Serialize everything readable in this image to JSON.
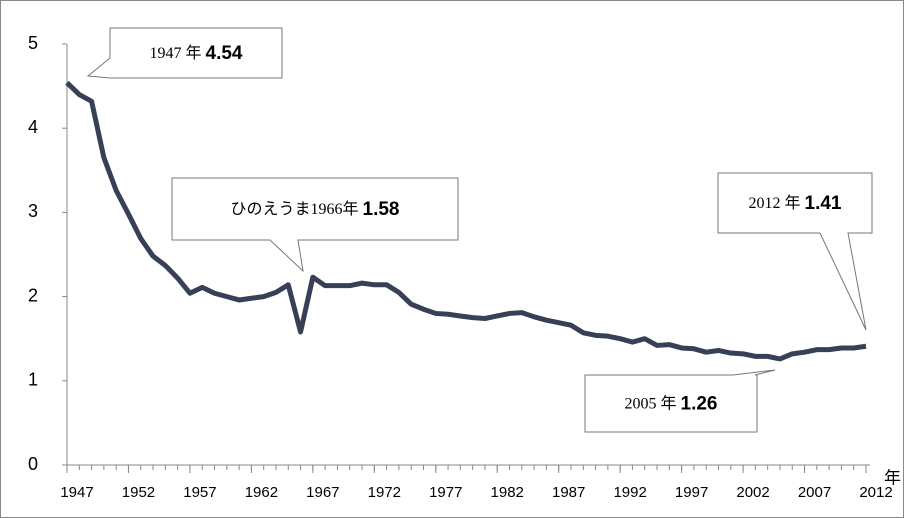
{
  "chart_data": {
    "type": "line",
    "x": [
      1947,
      1948,
      1949,
      1950,
      1951,
      1952,
      1953,
      1954,
      1955,
      1956,
      1957,
      1958,
      1959,
      1960,
      1961,
      1962,
      1963,
      1964,
      1965,
      1966,
      1967,
      1968,
      1969,
      1970,
      1971,
      1972,
      1973,
      1974,
      1975,
      1976,
      1977,
      1978,
      1979,
      1980,
      1981,
      1982,
      1983,
      1984,
      1985,
      1986,
      1987,
      1988,
      1989,
      1990,
      1991,
      1992,
      1993,
      1994,
      1995,
      1996,
      1997,
      1998,
      1999,
      2000,
      2001,
      2002,
      2003,
      2004,
      2005,
      2006,
      2007,
      2008,
      2009,
      2010,
      2011,
      2012
    ],
    "series": [
      {
        "color": "#364056",
        "values": [
          4.54,
          4.4,
          4.32,
          3.65,
          3.26,
          2.98,
          2.69,
          2.48,
          2.37,
          2.22,
          2.04,
          2.11,
          2.04,
          2.0,
          1.96,
          1.98,
          2.0,
          2.05,
          2.14,
          1.58,
          2.23,
          2.13,
          2.13,
          2.13,
          2.16,
          2.14,
          2.14,
          2.05,
          1.91,
          1.85,
          1.8,
          1.79,
          1.77,
          1.75,
          1.74,
          1.77,
          1.8,
          1.81,
          1.76,
          1.72,
          1.69,
          1.66,
          1.57,
          1.54,
          1.53,
          1.5,
          1.46,
          1.5,
          1.42,
          1.43,
          1.39,
          1.38,
          1.34,
          1.36,
          1.33,
          1.32,
          1.29,
          1.29,
          1.26,
          1.32,
          1.34,
          1.37,
          1.37,
          1.39,
          1.39,
          1.41
        ]
      }
    ],
    "xlim": [
      1947,
      2012
    ],
    "xticks": [
      1947,
      1952,
      1957,
      1962,
      1967,
      1972,
      1977,
      1982,
      1987,
      1992,
      1997,
      2002,
      2007,
      2012
    ],
    "ylim": [
      0,
      5
    ],
    "yticks": [
      0,
      1,
      2,
      3,
      4,
      5
    ],
    "x_label": "年",
    "annotations": [
      {
        "text": "1947 年",
        "value": 4.54
      },
      {
        "text": "ひのえうま1966年",
        "value": 1.58
      },
      {
        "text": "2012 年",
        "value": 1.41
      },
      {
        "text": "2005 年",
        "value": 1.26
      }
    ]
  }
}
